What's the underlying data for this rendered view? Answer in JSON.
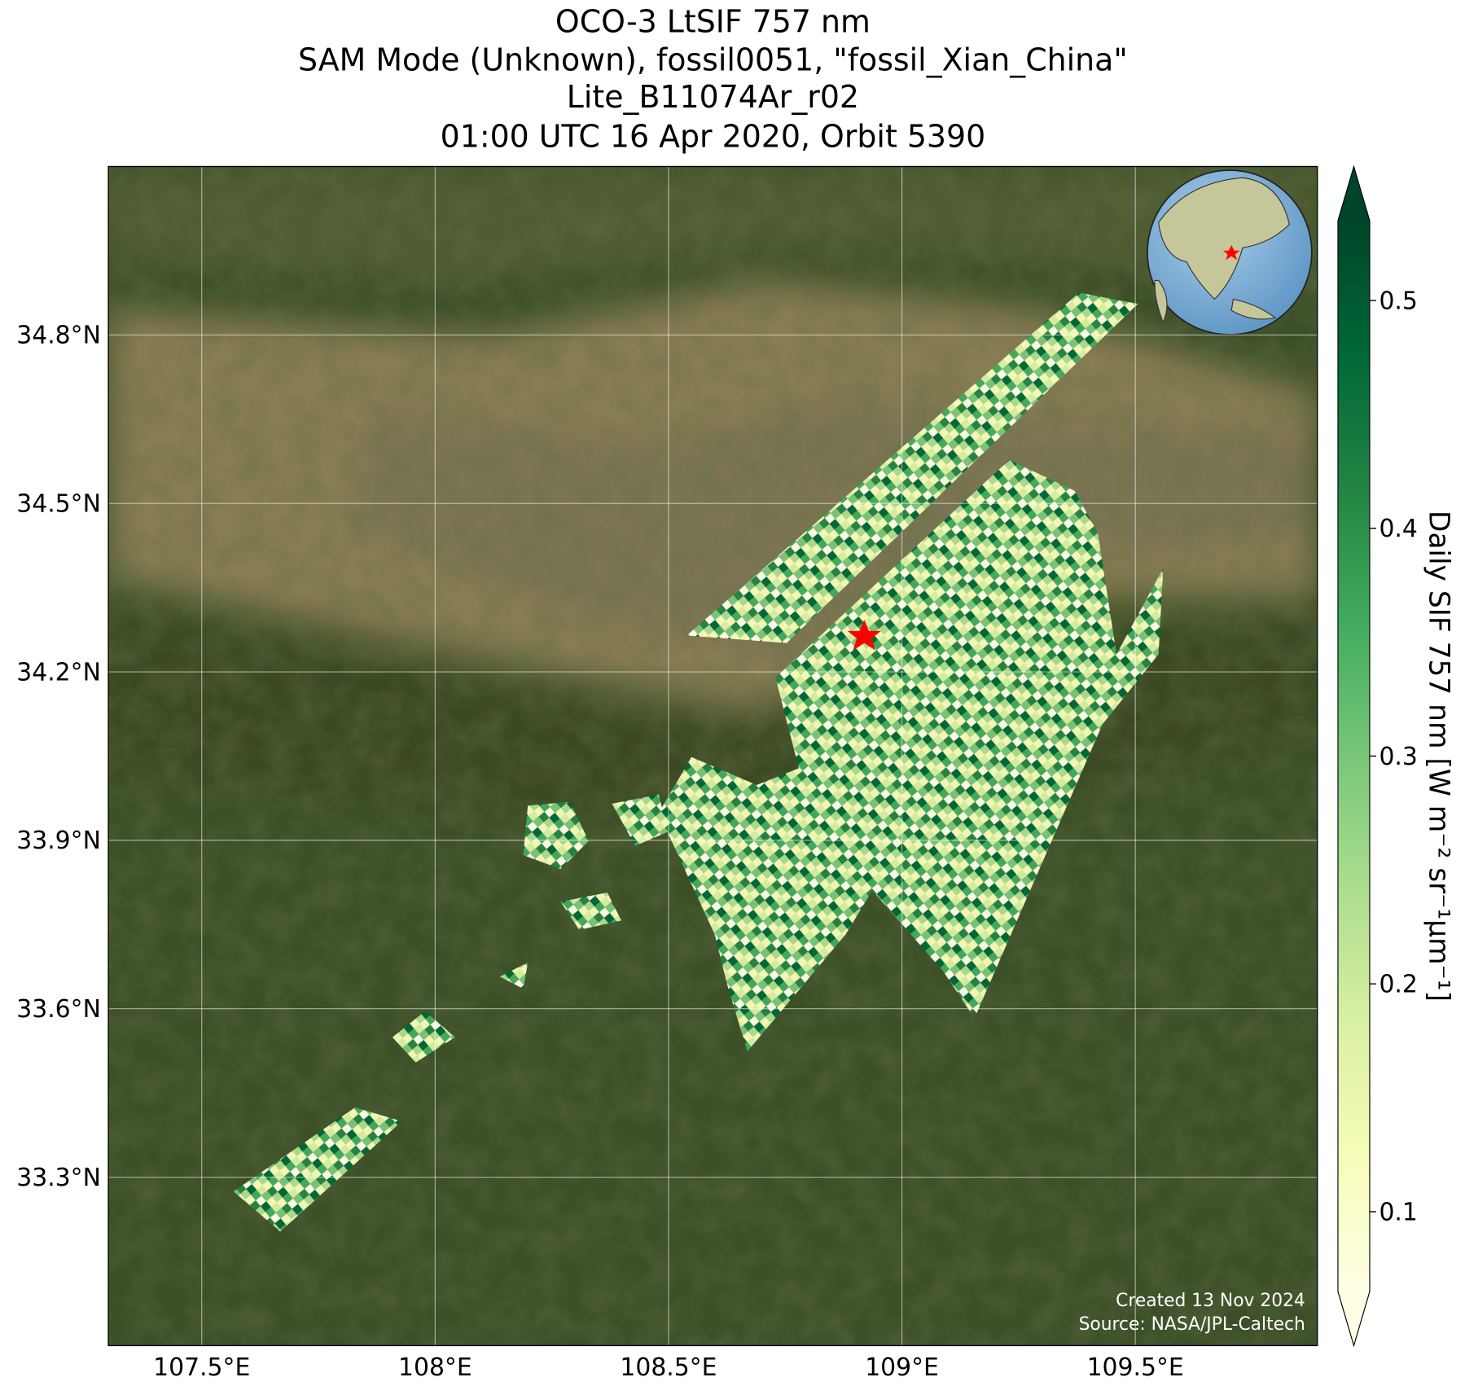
{
  "chart_data": {
    "type": "map",
    "title_lines": [
      "OCO-3 LtSIF 757 nm",
      "SAM Mode (Unknown), fossil0051, \"fossil_Xian_China\"",
      "Lite_B11074Ar_r02",
      "01:00 UTC 16 Apr 2020, Orbit 5390"
    ],
    "xlim": [
      107.3,
      109.89
    ],
    "ylim": [
      33.0,
      35.1
    ],
    "xticks": [
      {
        "value": 107.5,
        "label": "107.5°E"
      },
      {
        "value": 108,
        "label": "108°E"
      },
      {
        "value": 108.5,
        "label": "108.5°E"
      },
      {
        "value": 109,
        "label": "109°E"
      },
      {
        "value": 109.5,
        "label": "109.5°E"
      }
    ],
    "yticks": [
      {
        "value": 33.3,
        "label": "33.3°N"
      },
      {
        "value": 33.6,
        "label": "33.6°N"
      },
      {
        "value": 33.9,
        "label": "33.9°N"
      },
      {
        "value": 34.2,
        "label": "34.2°N"
      },
      {
        "value": 34.5,
        "label": "34.5°N"
      },
      {
        "value": 34.8,
        "label": "34.8°N"
      }
    ],
    "grid": true,
    "colorbar": {
      "label": "Daily SIF 757 nm [W m⁻² sr⁻¹µm⁻¹]",
      "clim": [
        0.065,
        0.535
      ],
      "ticks": [
        0.1,
        0.2,
        0.3,
        0.4,
        0.5
      ],
      "colormap": [
        "#ffffe5",
        "#f7fcb9",
        "#d9f0a3",
        "#addd8e",
        "#78c679",
        "#41ab5d",
        "#238443",
        "#006837",
        "#004529"
      ]
    },
    "credits": [
      "Created 13 Nov 2024",
      "Source: NASA/JPL-Caltech"
    ]
  }
}
